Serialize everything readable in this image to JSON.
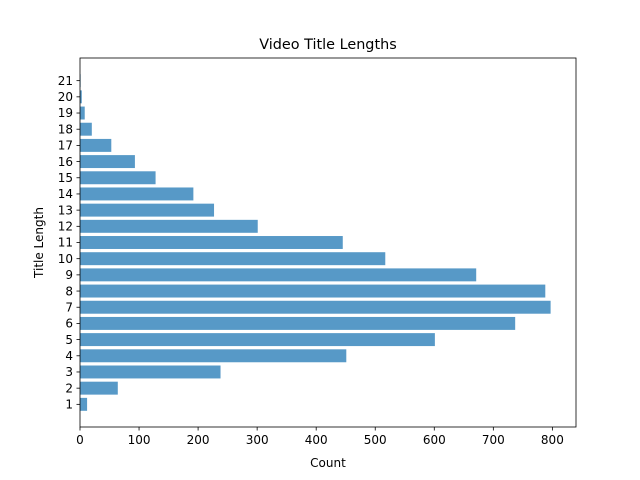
{
  "chart_data": {
    "type": "bar",
    "orientation": "horizontal",
    "title": "Video Title Lengths",
    "xlabel": "Count",
    "ylabel": "Title Length",
    "categories": [
      "1",
      "2",
      "3",
      "4",
      "5",
      "6",
      "7",
      "8",
      "9",
      "10",
      "11",
      "12",
      "13",
      "14",
      "15",
      "16",
      "17",
      "18",
      "19",
      "20",
      "21"
    ],
    "values": [
      12,
      64,
      238,
      451,
      601,
      737,
      797,
      788,
      671,
      517,
      445,
      301,
      227,
      192,
      128,
      93,
      53,
      20,
      8,
      3,
      1
    ],
    "xlim": [
      0,
      840
    ],
    "xticks": [
      "0",
      "100",
      "200",
      "300",
      "400",
      "500",
      "600",
      "700",
      "800"
    ],
    "bar_color": "#5799c7",
    "grid": false,
    "legend": "none"
  }
}
